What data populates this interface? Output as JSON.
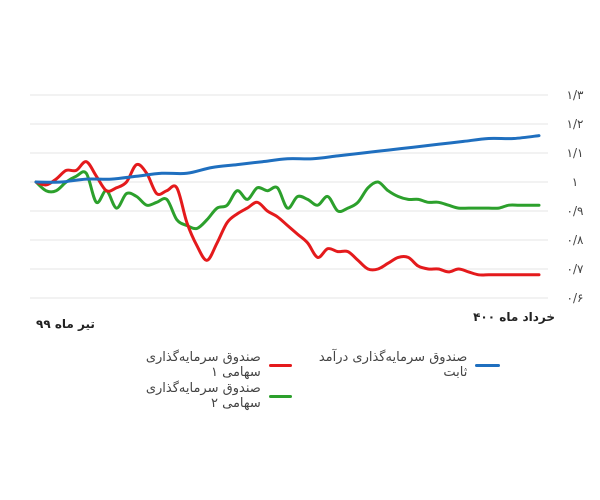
{
  "chart_data": {
    "type": "line",
    "x_labels": {
      "start": "تیر ماه ۹۹",
      "end": "خرداد ماه ۴۰۰"
    },
    "y_ticks": [
      "۰/۶",
      "۰/۷",
      "۰/۸",
      "۰/۹",
      "۱",
      "۱/۱",
      "۱/۲",
      "۱/۳"
    ],
    "ylim": [
      0.6,
      1.3
    ],
    "grid": true,
    "legend_position": "bottom",
    "series": [
      {
        "name": "صندوق سرمایه‌گذاری سهامی ۱",
        "color": "#e41a1c",
        "x": [
          0,
          2,
          4,
          6,
          8,
          10,
          12,
          14,
          16,
          18,
          20,
          22,
          24,
          26,
          28,
          30,
          32,
          34,
          36,
          38,
          40,
          42,
          44,
          46,
          48,
          50,
          52,
          54,
          56,
          58,
          60,
          62,
          64,
          66,
          68,
          70,
          72,
          74,
          76,
          78,
          80,
          82,
          84,
          86,
          88,
          90,
          92,
          94,
          96,
          98,
          100
        ],
        "values": [
          1.0,
          0.99,
          1.01,
          1.04,
          1.04,
          1.07,
          1.02,
          0.97,
          0.98,
          1.0,
          1.06,
          1.03,
          0.96,
          0.97,
          0.98,
          0.86,
          0.78,
          0.73,
          0.79,
          0.86,
          0.89,
          0.91,
          0.93,
          0.9,
          0.88,
          0.85,
          0.82,
          0.79,
          0.74,
          0.77,
          0.76,
          0.76,
          0.73,
          0.7,
          0.7,
          0.72,
          0.74,
          0.74,
          0.71,
          0.7,
          0.7,
          0.69,
          0.7,
          0.69,
          0.68,
          0.68,
          0.68,
          0.68,
          0.68,
          0.68,
          0.68
        ]
      },
      {
        "name": "صندوق سرمایه‌گذاری درآمد ثابت",
        "color": "#1f6fbf",
        "x": [
          0,
          5,
          10,
          15,
          20,
          25,
          30,
          35,
          40,
          45,
          50,
          55,
          60,
          65,
          70,
          75,
          80,
          85,
          90,
          95,
          100
        ],
        "values": [
          1.0,
          1.0,
          1.01,
          1.01,
          1.02,
          1.03,
          1.03,
          1.05,
          1.06,
          1.07,
          1.08,
          1.08,
          1.09,
          1.1,
          1.11,
          1.12,
          1.13,
          1.14,
          1.15,
          1.15,
          1.16
        ]
      },
      {
        "name": "صندوق سرمایه‌گذاری سهامی ۲",
        "color": "#2ca02c",
        "x": [
          0,
          2,
          4,
          6,
          8,
          10,
          12,
          14,
          16,
          18,
          20,
          22,
          24,
          26,
          28,
          30,
          32,
          34,
          36,
          38,
          40,
          42,
          44,
          46,
          48,
          50,
          52,
          54,
          56,
          58,
          60,
          62,
          64,
          66,
          68,
          70,
          72,
          74,
          76,
          78,
          80,
          82,
          84,
          86,
          88,
          90,
          92,
          94,
          96,
          98,
          100
        ],
        "values": [
          1.0,
          0.97,
          0.97,
          1.0,
          1.02,
          1.03,
          0.93,
          0.97,
          0.91,
          0.96,
          0.95,
          0.92,
          0.93,
          0.94,
          0.87,
          0.85,
          0.84,
          0.87,
          0.91,
          0.92,
          0.97,
          0.94,
          0.98,
          0.97,
          0.98,
          0.91,
          0.95,
          0.94,
          0.92,
          0.95,
          0.9,
          0.91,
          0.93,
          0.98,
          1.0,
          0.97,
          0.95,
          0.94,
          0.94,
          0.93,
          0.93,
          0.92,
          0.91,
          0.91,
          0.91,
          0.91,
          0.91,
          0.92,
          0.92,
          0.92,
          0.92
        ]
      }
    ]
  }
}
